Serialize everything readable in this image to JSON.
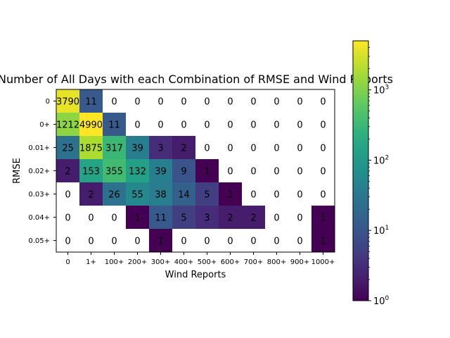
{
  "chart_data": {
    "type": "heatmap",
    "title": "Number of All Days with each Combination of RMSE and Wind Reports",
    "xlabel": "Wind Reports",
    "ylabel": "RMSE",
    "x_categories": [
      "0",
      "1+",
      "100+",
      "200+",
      "300+",
      "400+",
      "500+",
      "600+",
      "700+",
      "800+",
      "900+",
      "1000+"
    ],
    "y_categories": [
      "0",
      "0+",
      "0.01+",
      "0.02+",
      "0.03+",
      "0.04+",
      "0.05+"
    ],
    "values": [
      [
        3790,
        11,
        0,
        0,
        0,
        0,
        0,
        0,
        0,
        0,
        0,
        0
      ],
      [
        1212,
        4990,
        11,
        0,
        0,
        0,
        0,
        0,
        0,
        0,
        0,
        0
      ],
      [
        25,
        1875,
        317,
        39,
        3,
        2,
        0,
        0,
        0,
        0,
        0,
        0
      ],
      [
        2,
        153,
        355,
        132,
        39,
        9,
        1,
        0,
        0,
        0,
        0,
        0
      ],
      [
        0,
        2,
        26,
        55,
        38,
        14,
        5,
        1,
        0,
        0,
        0,
        0
      ],
      [
        0,
        0,
        0,
        1,
        11,
        5,
        3,
        2,
        2,
        0,
        0,
        1
      ],
      [
        0,
        0,
        0,
        0,
        1,
        0,
        0,
        0,
        0,
        0,
        0,
        1
      ]
    ],
    "colorbar": {
      "scale": "log",
      "range": [
        1,
        4990
      ],
      "ticks": [
        {
          "value": 1,
          "label_base": "10",
          "label_exp": "0"
        },
        {
          "value": 10,
          "label_base": "10",
          "label_exp": "1"
        },
        {
          "value": 100,
          "label_base": "10",
          "label_exp": "2"
        },
        {
          "value": 1000,
          "label_base": "10",
          "label_exp": "3"
        }
      ]
    },
    "colormap": "viridis",
    "zero_color": "#ffffff",
    "grid": false
  }
}
